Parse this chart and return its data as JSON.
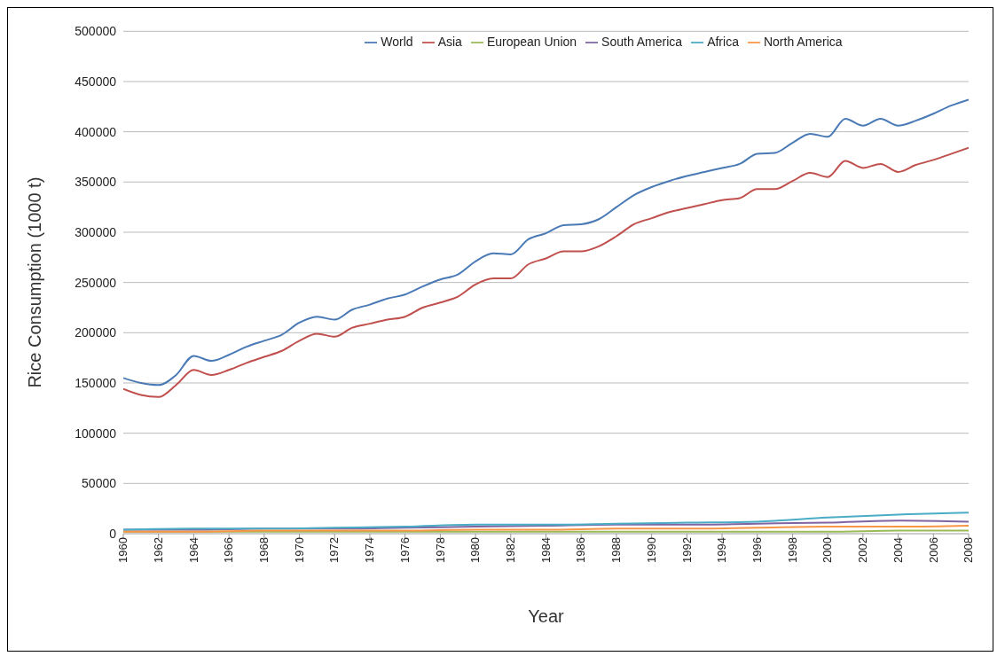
{
  "chart_data": {
    "type": "line",
    "xlabel": "Year",
    "ylabel": "Rice Consumption (1000 t)",
    "xlim": [
      1960,
      2008
    ],
    "xticks": [
      1960,
      1962,
      1964,
      1966,
      1968,
      1970,
      1972,
      1974,
      1976,
      1978,
      1980,
      1982,
      1984,
      1986,
      1988,
      1990,
      1992,
      1994,
      1996,
      1998,
      2000,
      2002,
      2004,
      2006,
      2008
    ],
    "ylim": [
      0,
      500000
    ],
    "yticks": [
      0,
      50000,
      100000,
      150000,
      200000,
      250000,
      300000,
      350000,
      400000,
      450000,
      500000
    ],
    "grid": "y",
    "legend": "top",
    "marker": "none",
    "line_style": "solid",
    "x": [
      1960,
      1961,
      1962,
      1963,
      1964,
      1965,
      1966,
      1967,
      1968,
      1969,
      1970,
      1971,
      1972,
      1973,
      1974,
      1975,
      1976,
      1977,
      1978,
      1979,
      1980,
      1981,
      1982,
      1983,
      1984,
      1985,
      1986,
      1987,
      1988,
      1989,
      1990,
      1991,
      1992,
      1993,
      1994,
      1995,
      1996,
      1997,
      1998,
      1999,
      2000,
      2001,
      2002,
      2003,
      2004,
      2005,
      2006,
      2007,
      2008
    ],
    "series": [
      {
        "name": "World",
        "color": "#4a7ab5",
        "values": [
          155000,
          150000,
          148000,
          158000,
          177000,
          172000,
          178000,
          186000,
          192000,
          198000,
          210000,
          216000,
          213000,
          223000,
          228000,
          234000,
          238000,
          246000,
          253000,
          258000,
          271000,
          279000,
          278000,
          293000,
          299000,
          307000,
          308000,
          313000,
          325000,
          337000,
          345000,
          351000,
          356000,
          360000,
          364000,
          368000,
          378000,
          379000,
          389000,
          398000,
          395000,
          413000,
          406000,
          413000,
          406000,
          411000,
          418000,
          426000,
          432000
        ]
      },
      {
        "name": "Asia",
        "color": "#c0504d",
        "values": [
          144000,
          138000,
          136000,
          148000,
          163000,
          158000,
          163000,
          170000,
          176000,
          182000,
          192000,
          199000,
          196000,
          205000,
          209000,
          213000,
          216000,
          225000,
          230000,
          236000,
          248000,
          254000,
          254000,
          268000,
          274000,
          281000,
          281000,
          286000,
          296000,
          308000,
          314000,
          320000,
          324000,
          328000,
          332000,
          334000,
          343000,
          343000,
          351000,
          359000,
          355000,
          371000,
          364000,
          368000,
          360000,
          367000,
          372000,
          378000,
          384000
        ]
      },
      {
        "name": "European Union",
        "color": "#9bbb59",
        "x": [
          1960,
          1964,
          1968,
          1972,
          1976,
          1980,
          1984,
          1988,
          1992,
          1996,
          2000,
          2004,
          2008
        ],
        "values": [
          2000,
          2000,
          2000,
          2000,
          2000,
          2000,
          2000,
          2000,
          2000,
          2000,
          2000,
          3000,
          3000
        ]
      },
      {
        "name": "South America",
        "color": "#8064a2",
        "x": [
          1960,
          1964,
          1968,
          1972,
          1976,
          1980,
          1984,
          1988,
          1992,
          1996,
          2000,
          2004,
          2008
        ],
        "values": [
          4000,
          4000,
          5000,
          5000,
          6000,
          7000,
          8000,
          9000,
          9000,
          10000,
          11000,
          13000,
          12000
        ]
      },
      {
        "name": "Africa",
        "color": "#4bacc6",
        "x": [
          1960,
          1964,
          1968,
          1972,
          1976,
          1980,
          1984,
          1988,
          1992,
          1996,
          2000,
          2004,
          2008
        ],
        "values": [
          4000,
          5000,
          5000,
          6000,
          7000,
          9000,
          9000,
          10000,
          11000,
          12000,
          16000,
          19000,
          21000
        ]
      },
      {
        "name": "North America",
        "color": "#f79646",
        "x": [
          1960,
          1964,
          1968,
          1972,
          1976,
          1980,
          1984,
          1988,
          1992,
          1996,
          2000,
          2004,
          2008
        ],
        "values": [
          2000,
          2000,
          3000,
          3000,
          3000,
          4000,
          4000,
          5000,
          5000,
          6000,
          7000,
          7000,
          8000
        ]
      }
    ]
  }
}
